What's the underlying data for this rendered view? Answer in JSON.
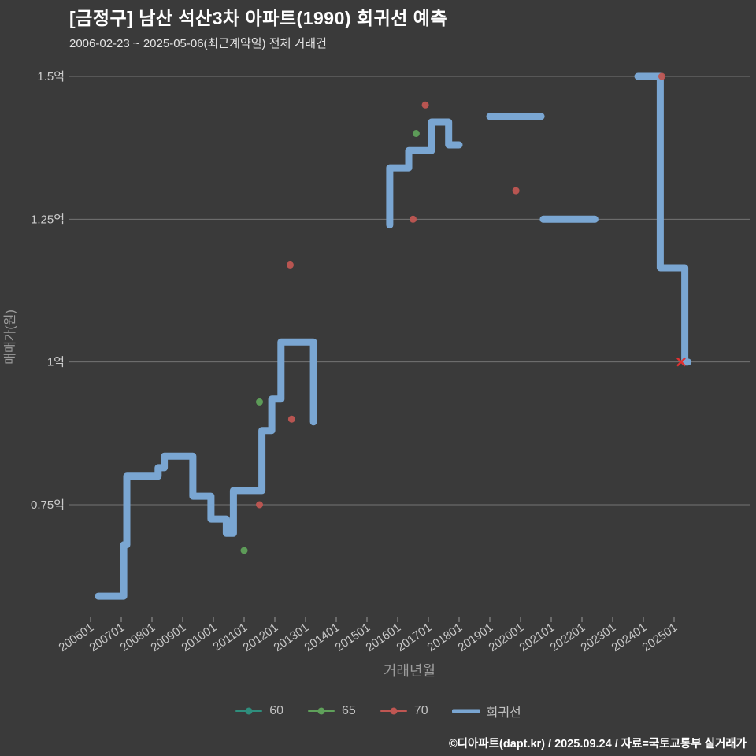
{
  "title": "[금정구] 남산 석산3차 아파트(1990) 회귀선 예측",
  "subtitle": "2006-02-23 ~ 2025-05-06(최근계약일) 전체 거래건",
  "footer": "©디아파트(dapt.kr) / 2025.09.24 / 자료=국토교통부 실거래가",
  "colors": {
    "background": "#3a3a3a",
    "gridline": "#7f7f7f",
    "tick_label": "#c9c9c9",
    "axis_label": "#9c9c9c",
    "title": "#ffffff"
  },
  "chart_data": {
    "type": "line",
    "title": "[금정구] 남산 석산3차 아파트(1990) 회귀선 예측",
    "subtitle": "2006-02-23 ~ 2025-05-06(최근계약일) 전체 거래건",
    "xlabel": "거래년월",
    "ylabel": "매매가(원)",
    "grid": true,
    "legend_position": "bottom",
    "xlim": [
      2005.6,
      2025.9
    ],
    "ylim": [
      0.55,
      1.56
    ],
    "unit": "억원",
    "x_ticks": [
      "200601",
      "200701",
      "200801",
      "200901",
      "201001",
      "201101",
      "201201",
      "201301",
      "201401",
      "201501",
      "201601",
      "201701",
      "201801",
      "201901",
      "202001",
      "202101",
      "202201",
      "202301",
      "202401",
      "202501"
    ],
    "y_ticks": [
      {
        "label": "1.5억",
        "value": 1.5
      },
      {
        "label": "1.25억",
        "value": 1.25
      },
      {
        "label": "1억",
        "value": 1.0
      },
      {
        "label": "0.75억",
        "value": 0.75
      }
    ],
    "legend": [
      {
        "label": "60",
        "type": "dot"
      },
      {
        "label": "65",
        "type": "dot"
      },
      {
        "label": "70",
        "type": "dot"
      },
      {
        "label": "회귀선",
        "type": "line"
      }
    ],
    "series_colors": {
      "60": "#2f8e7d",
      "65": "#5fa05a",
      "70": "#bf5652",
      "회귀선": "#7aa6d2"
    },
    "regression_segments": [
      [
        [
          2006.25,
          0.59
        ],
        [
          2007.08,
          0.59
        ],
        [
          2007.08,
          0.68
        ],
        [
          2007.18,
          0.68
        ],
        [
          2007.18,
          0.8
        ],
        [
          2008.2,
          0.8
        ],
        [
          2008.2,
          0.815
        ],
        [
          2008.4,
          0.815
        ],
        [
          2008.4,
          0.835
        ],
        [
          2009.33,
          0.835
        ],
        [
          2009.33,
          0.765
        ],
        [
          2009.92,
          0.765
        ],
        [
          2009.92,
          0.725
        ],
        [
          2010.42,
          0.725
        ],
        [
          2010.42,
          0.7
        ],
        [
          2010.65,
          0.7
        ],
        [
          2010.65,
          0.775
        ],
        [
          2011.58,
          0.775
        ],
        [
          2011.58,
          0.88
        ],
        [
          2011.9,
          0.88
        ],
        [
          2011.9,
          0.935
        ],
        [
          2012.2,
          0.935
        ],
        [
          2012.2,
          1.035
        ],
        [
          2013.26,
          1.035
        ],
        [
          2013.26,
          0.895
        ]
      ],
      [
        [
          2015.74,
          1.24
        ],
        [
          2015.74,
          1.34
        ],
        [
          2016.36,
          1.34
        ],
        [
          2016.36,
          1.37
        ],
        [
          2017.1,
          1.37
        ],
        [
          2017.1,
          1.42
        ],
        [
          2017.66,
          1.42
        ],
        [
          2017.66,
          1.38
        ],
        [
          2018.0,
          1.38
        ]
      ],
      [
        [
          2019.0,
          1.43
        ],
        [
          2020.67,
          1.43
        ]
      ],
      [
        [
          2020.74,
          1.25
        ],
        [
          2022.42,
          1.25
        ]
      ],
      [
        [
          2023.82,
          1.5
        ],
        [
          2024.55,
          1.5
        ],
        [
          2024.55,
          1.165
        ],
        [
          2025.35,
          1.165
        ],
        [
          2025.35,
          1.0
        ],
        [
          2025.45,
          1.0
        ]
      ]
    ],
    "scatter": {
      "60": [],
      "65": [
        [
          2011.0,
          0.67
        ],
        [
          2011.5,
          0.93
        ],
        [
          2016.6,
          1.4
        ]
      ],
      "70": [
        [
          2011.5,
          0.75
        ],
        [
          2012.5,
          1.17
        ],
        [
          2012.55,
          0.9
        ],
        [
          2016.5,
          1.25
        ],
        [
          2016.9,
          1.45
        ],
        [
          2019.85,
          1.3
        ],
        [
          2024.6,
          1.5
        ]
      ]
    },
    "x_marker": {
      "x": 2025.23,
      "y": 1.0,
      "color": "#e03131"
    }
  }
}
